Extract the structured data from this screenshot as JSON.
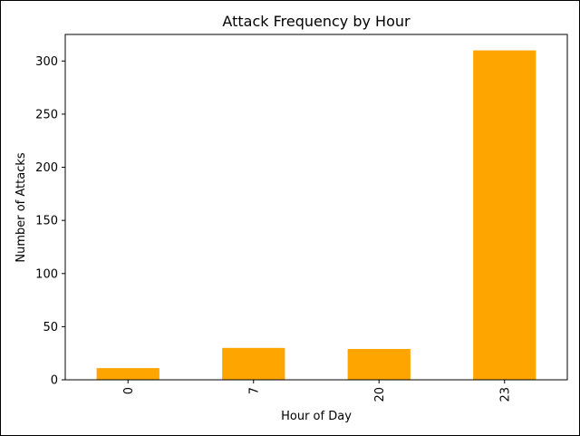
{
  "chart_data": {
    "type": "bar",
    "title": "Attack Frequency by Hour",
    "xlabel": "Hour of Day",
    "ylabel": "Number of Attacks",
    "categories": [
      "0",
      "7",
      "20",
      "23"
    ],
    "values": [
      11,
      30,
      29,
      310
    ],
    "ylim": [
      0,
      325
    ],
    "yticks": [
      "0",
      "50",
      "100",
      "150",
      "200",
      "250",
      "300"
    ],
    "bar_color": "#ffa500",
    "grid": false,
    "legend": "none"
  }
}
